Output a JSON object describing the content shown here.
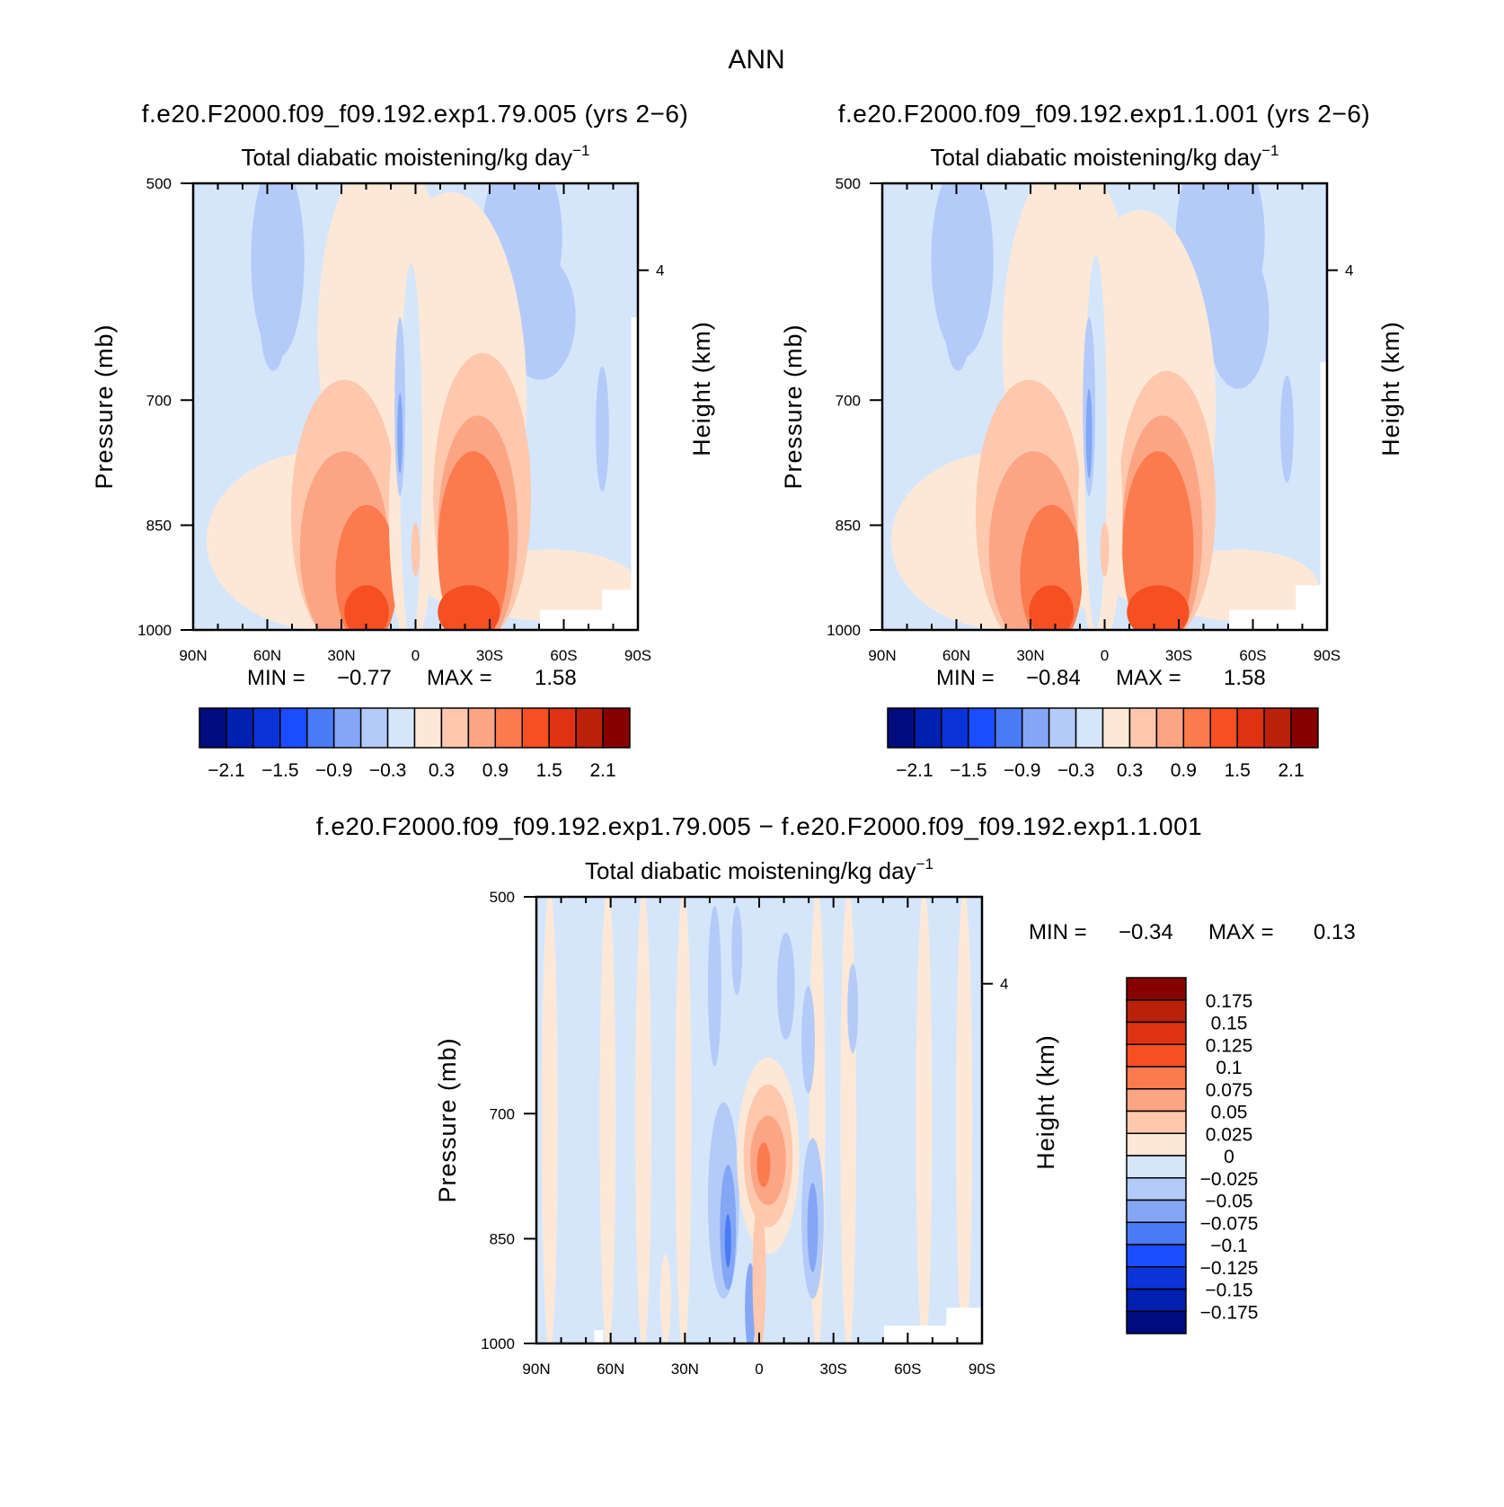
{
  "figure": {
    "title": "ANN",
    "panels": [
      {
        "id": "case1",
        "case_title": "f.e20.F2000.f09_f09.192.exp1.79.005 (yrs 2−6)",
        "subtitle": "Total diabatic moistening/kg day",
        "subtitle_superscript": "−1",
        "left_axis_label": "Pressure (mb)",
        "right_axis_label": "Height (km)",
        "min_label": "MIN =",
        "min_value": "−0.77",
        "max_label": "MAX =",
        "max_value": "1.58"
      },
      {
        "id": "case2",
        "case_title": "f.e20.F2000.f09_f09.192.exp1.1.001 (yrs 2−6)",
        "subtitle": "Total diabatic moistening/kg day",
        "subtitle_superscript": "−1",
        "left_axis_label": "Pressure (mb)",
        "right_axis_label": "Height (km)",
        "min_label": "MIN =",
        "min_value": "−0.84",
        "max_label": "MAX =",
        "max_value": "1.58"
      },
      {
        "id": "diff",
        "case_title": "f.e20.F2000.f09_f09.192.exp1.79.005 − f.e20.F2000.f09_f09.192.exp1.1.001",
        "subtitle": "Total diabatic moistening/kg day",
        "subtitle_superscript": "−1",
        "left_axis_label": "Pressure (mb)",
        "right_axis_label": "Height (km)",
        "min_label": "MIN =",
        "min_value": "−0.34",
        "max_label": "MAX =",
        "max_value": "0.13"
      }
    ],
    "colors": {
      "palette": [
        "#000c7e",
        "#0020b0",
        "#0a33d8",
        "#1a4dff",
        "#4a7bf6",
        "#84a6f5",
        "#b4cbf9",
        "#d5e6fb",
        "#fde8d7",
        "#fdc8ad",
        "#fca585",
        "#fb7a4e",
        "#f54f22",
        "#df3210",
        "#b92208",
        "#870000"
      ]
    },
    "colorbar_main_labels": [
      "−2.1",
      "−1.5",
      "−0.9",
      "−0.3",
      "0.3",
      "0.9",
      "1.5",
      "2.1"
    ],
    "colorbar_diff_labels": [
      "0.175",
      "0.15",
      "0.125",
      "0.1",
      "0.075",
      "0.05",
      "0.025",
      "0",
      "−0.025",
      "−0.05",
      "−0.075",
      "−0.1",
      "−0.125",
      "−0.15",
      "−0.175"
    ]
  },
  "chart_data": [
    {
      "type": "heatmap",
      "title": "Total diabatic moistening/kg day−1",
      "xlabel": "",
      "ylabel": "Pressure (mb)",
      "y2label": "Height (km)",
      "x_ticks": [
        "90N",
        "60N",
        "30N",
        "0",
        "30S",
        "60S",
        "90S"
      ],
      "x_range": [
        90,
        -90
      ],
      "y_ticks": [
        500,
        700,
        850,
        1000
      ],
      "y_range": [
        500,
        1000
      ],
      "y2_ticks": [
        4
      ],
      "contour_levels": [
        -2.1,
        -1.8,
        -1.5,
        -1.2,
        -0.9,
        -0.6,
        -0.3,
        0,
        0.3,
        0.6,
        0.9,
        1.2,
        1.5,
        1.8,
        2.1
      ],
      "min": -0.77,
      "max": 1.58
    },
    {
      "type": "heatmap",
      "title": "Total diabatic moistening/kg day−1",
      "xlabel": "",
      "ylabel": "Pressure (mb)",
      "y2label": "Height (km)",
      "x_ticks": [
        "90N",
        "60N",
        "30N",
        "0",
        "30S",
        "60S",
        "90S"
      ],
      "x_range": [
        90,
        -90
      ],
      "y_ticks": [
        500,
        700,
        850,
        1000
      ],
      "y_range": [
        500,
        1000
      ],
      "y2_ticks": [
        4
      ],
      "contour_levels": [
        -2.1,
        -1.8,
        -1.5,
        -1.2,
        -0.9,
        -0.6,
        -0.3,
        0,
        0.3,
        0.6,
        0.9,
        1.2,
        1.5,
        1.8,
        2.1
      ],
      "min": -0.84,
      "max": 1.58
    },
    {
      "type": "heatmap",
      "title": "Total diabatic moistening/kg day−1",
      "xlabel": "",
      "ylabel": "Pressure (mb)",
      "y2label": "Height (km)",
      "x_ticks": [
        "90N",
        "60N",
        "30N",
        "0",
        "30S",
        "60S",
        "90S"
      ],
      "x_range": [
        90,
        -90
      ],
      "y_ticks": [
        500,
        700,
        850,
        1000
      ],
      "y_range": [
        500,
        1000
      ],
      "y2_ticks": [
        4
      ],
      "contour_levels": [
        -0.175,
        -0.15,
        -0.125,
        -0.1,
        -0.075,
        -0.05,
        -0.025,
        0,
        0.025,
        0.05,
        0.075,
        0.1,
        0.125,
        0.15,
        0.175
      ],
      "min": -0.34,
      "max": 0.13
    }
  ]
}
